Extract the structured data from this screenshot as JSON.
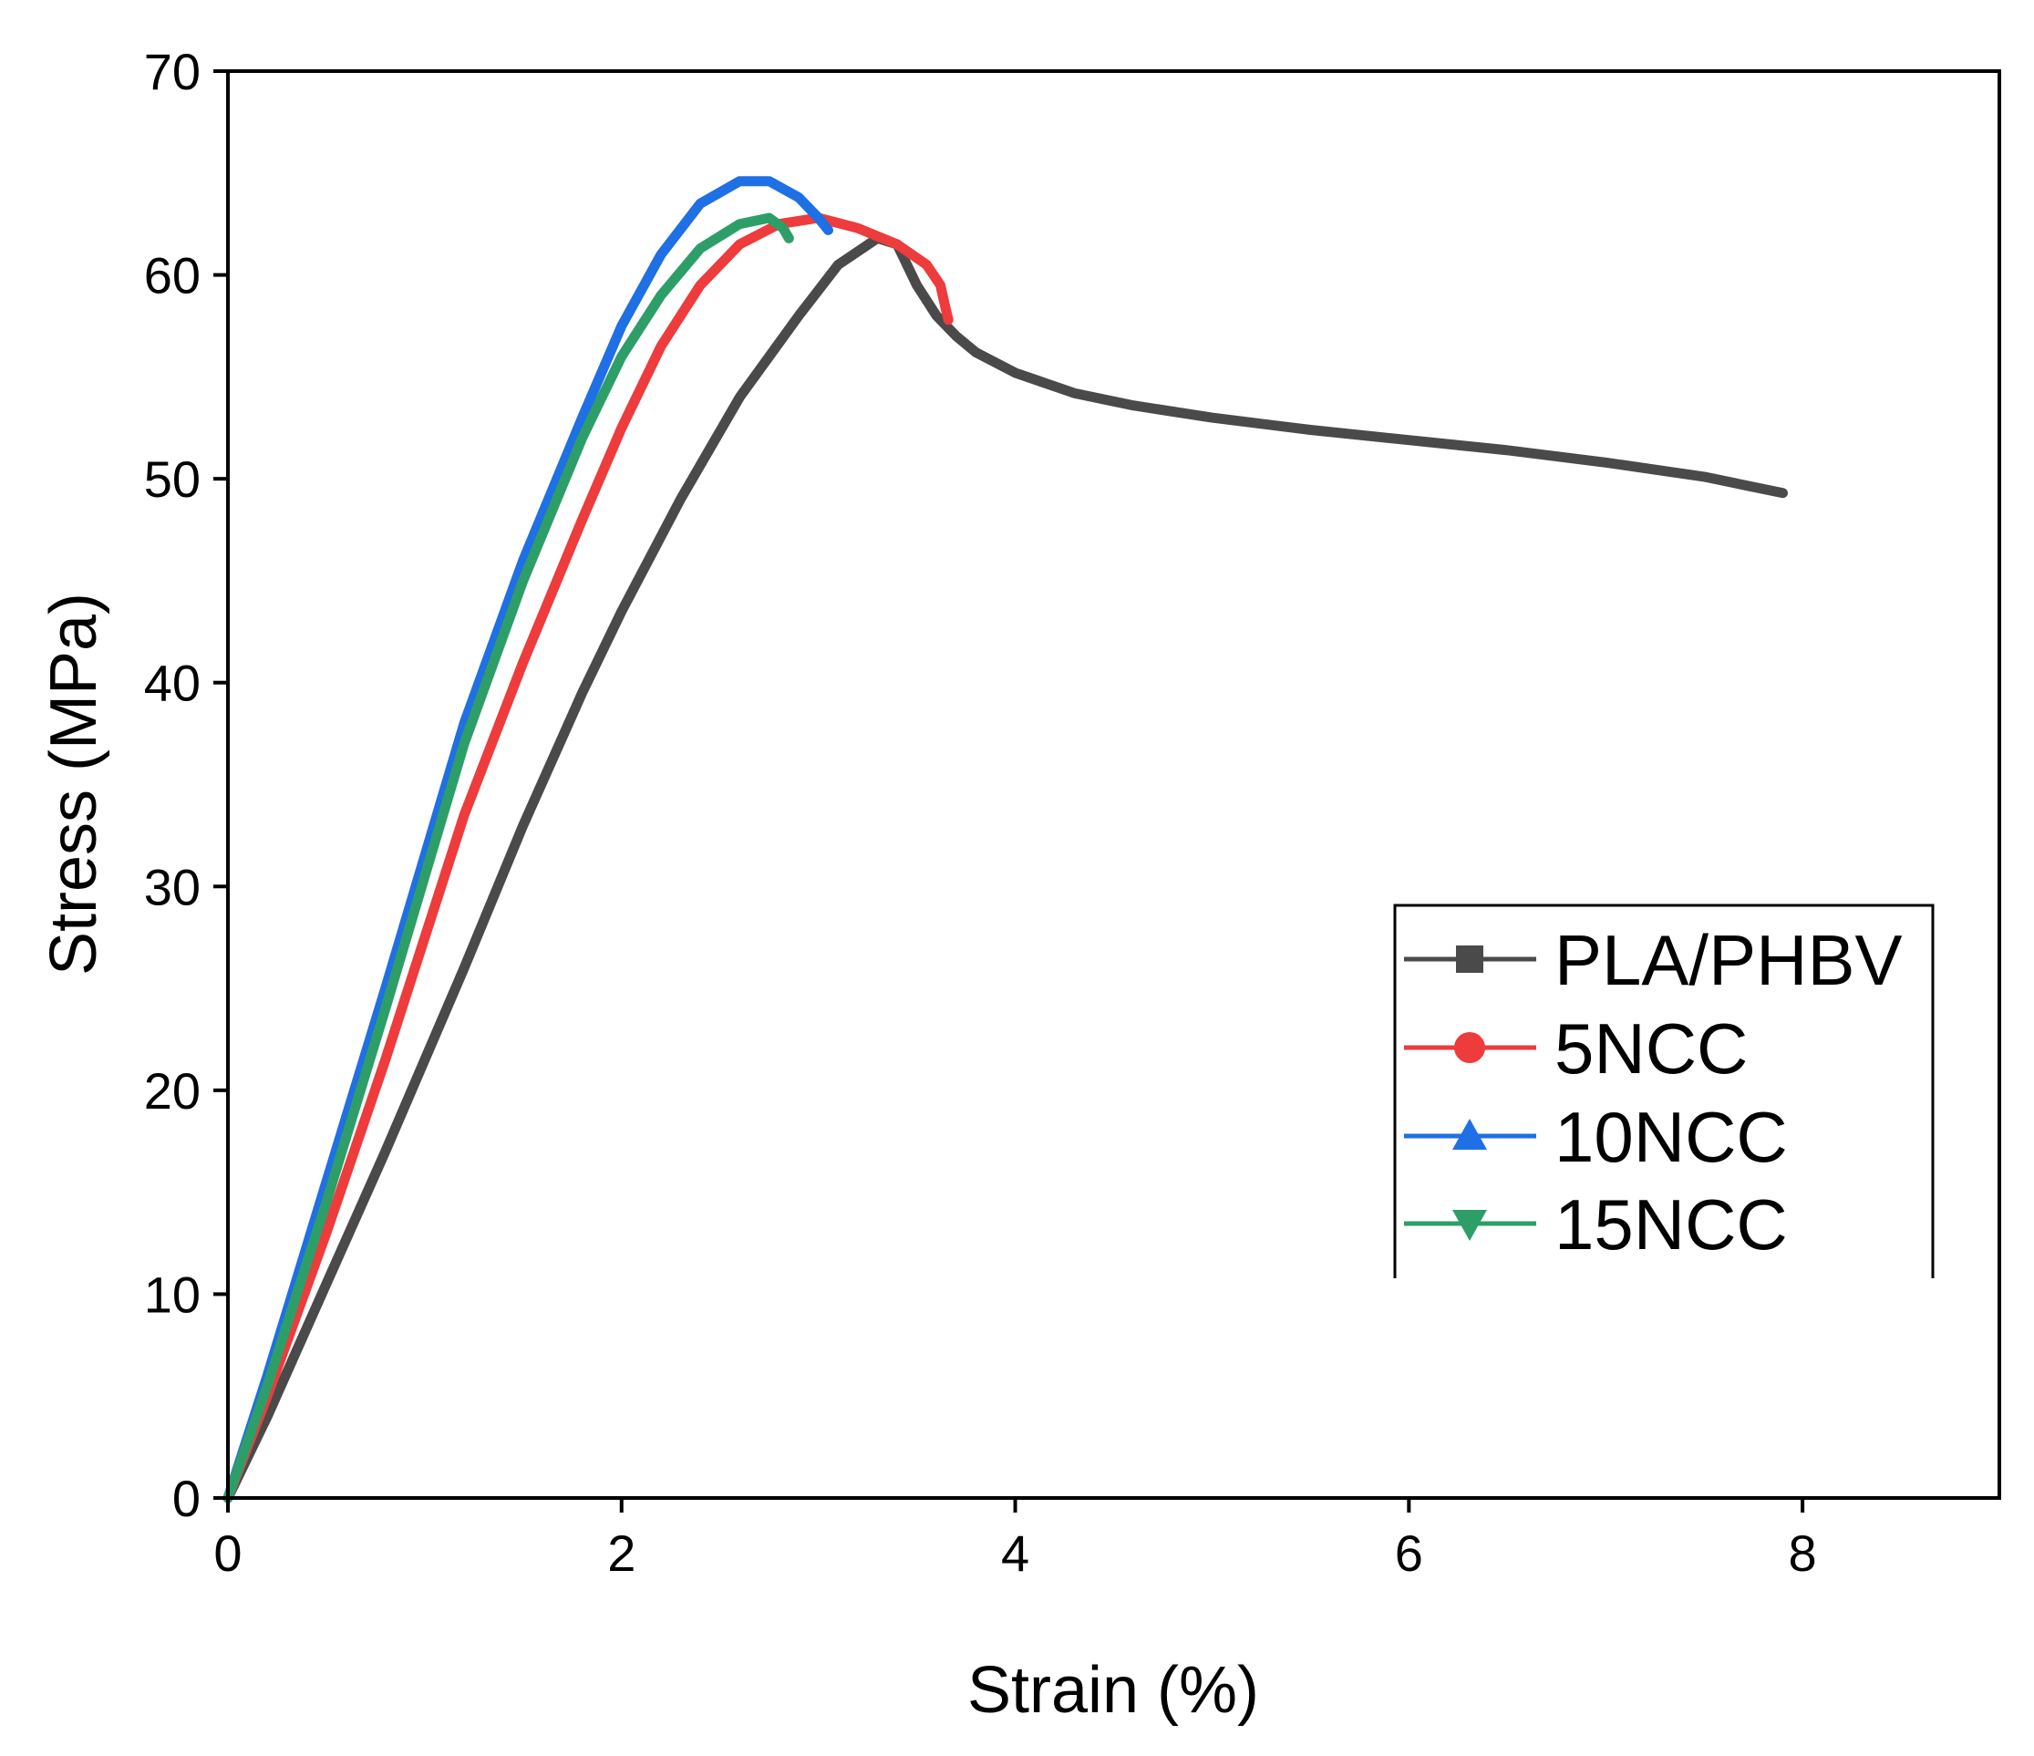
{
  "chart_data": {
    "type": "line",
    "title": "",
    "xlabel": "Strain (%)",
    "ylabel": "Stress (MPa)",
    "xlim": [
      0,
      9
    ],
    "ylim": [
      0,
      70
    ],
    "xticks": [
      0,
      2,
      4,
      6,
      8
    ],
    "yticks": [
      0,
      10,
      20,
      30,
      40,
      50,
      60,
      70
    ],
    "grid": false,
    "legend_position": "right",
    "series": [
      {
        "name": "PLA/PHBV",
        "color": "#4a4a4a",
        "marker": "square",
        "points": [
          [
            0,
            0
          ],
          [
            0.2,
            4
          ],
          [
            0.5,
            10.5
          ],
          [
            0.8,
            17
          ],
          [
            1.0,
            21.5
          ],
          [
            1.2,
            26
          ],
          [
            1.5,
            33
          ],
          [
            1.8,
            39.5
          ],
          [
            2.0,
            43.5
          ],
          [
            2.3,
            49
          ],
          [
            2.6,
            54
          ],
          [
            2.9,
            58
          ],
          [
            3.1,
            60.5
          ],
          [
            3.3,
            61.8
          ],
          [
            3.4,
            61.5
          ],
          [
            3.5,
            59.5
          ],
          [
            3.6,
            58
          ],
          [
            3.7,
            57
          ],
          [
            3.8,
            56.2
          ],
          [
            4.0,
            55.2
          ],
          [
            4.3,
            54.2
          ],
          [
            4.6,
            53.6
          ],
          [
            5.0,
            53.0
          ],
          [
            5.5,
            52.4
          ],
          [
            6.0,
            51.9
          ],
          [
            6.5,
            51.4
          ],
          [
            7.0,
            50.8
          ],
          [
            7.5,
            50.1
          ],
          [
            7.9,
            49.3
          ]
        ]
      },
      {
        "name": "5NCC",
        "color": "#ee3b3b",
        "marker": "circle",
        "points": [
          [
            0,
            0
          ],
          [
            0.2,
            5
          ],
          [
            0.5,
            13
          ],
          [
            0.8,
            21.5
          ],
          [
            1.0,
            27.5
          ],
          [
            1.2,
            33.5
          ],
          [
            1.5,
            41
          ],
          [
            1.8,
            48
          ],
          [
            2.0,
            52.5
          ],
          [
            2.2,
            56.5
          ],
          [
            2.4,
            59.5
          ],
          [
            2.6,
            61.5
          ],
          [
            2.8,
            62.5
          ],
          [
            3.0,
            62.8
          ],
          [
            3.2,
            62.3
          ],
          [
            3.4,
            61.5
          ],
          [
            3.55,
            60.5
          ],
          [
            3.62,
            59.5
          ],
          [
            3.65,
            58.2
          ],
          [
            3.66,
            57.8
          ]
        ]
      },
      {
        "name": "10NCC",
        "color": "#1f6fe5",
        "marker": "triangle-up",
        "points": [
          [
            0,
            0
          ],
          [
            0.2,
            6
          ],
          [
            0.5,
            15.5
          ],
          [
            0.8,
            25
          ],
          [
            1.0,
            31.5
          ],
          [
            1.2,
            38
          ],
          [
            1.5,
            46
          ],
          [
            1.8,
            53
          ],
          [
            2.0,
            57.5
          ],
          [
            2.2,
            61
          ],
          [
            2.4,
            63.5
          ],
          [
            2.6,
            64.6
          ],
          [
            2.75,
            64.6
          ],
          [
            2.9,
            63.8
          ],
          [
            3.0,
            62.8
          ],
          [
            3.05,
            62.2
          ]
        ]
      },
      {
        "name": "15NCC",
        "color": "#2e9e68",
        "marker": "triangle-down",
        "points": [
          [
            0,
            0
          ],
          [
            0.2,
            5.5
          ],
          [
            0.5,
            14.5
          ],
          [
            0.8,
            24
          ],
          [
            1.0,
            30.5
          ],
          [
            1.2,
            37
          ],
          [
            1.5,
            45
          ],
          [
            1.8,
            52
          ],
          [
            2.0,
            56
          ],
          [
            2.2,
            59
          ],
          [
            2.4,
            61.3
          ],
          [
            2.6,
            62.5
          ],
          [
            2.75,
            62.8
          ],
          [
            2.82,
            62.3
          ],
          [
            2.85,
            61.8
          ]
        ]
      }
    ]
  }
}
